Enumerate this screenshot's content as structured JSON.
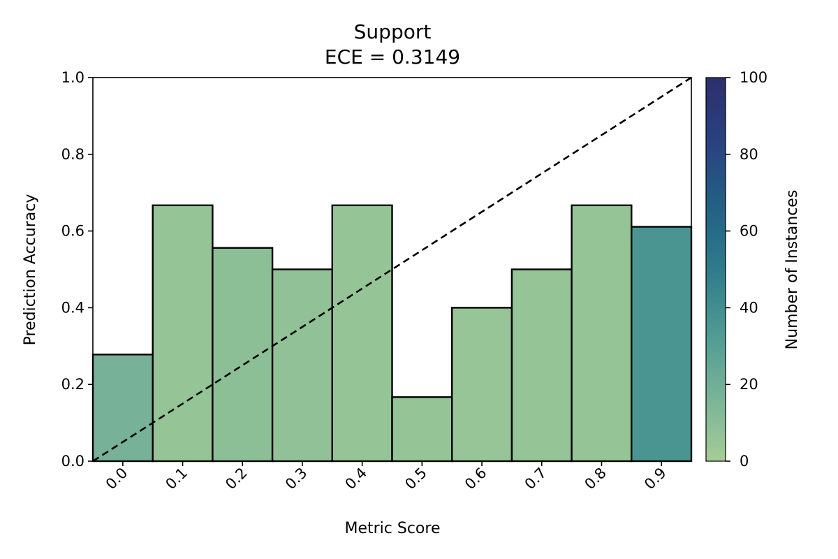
{
  "chart_data": {
    "type": "bar",
    "title": "Support",
    "subtitle": "ECE = 0.3149",
    "xlabel": "Metric Score",
    "ylabel": "Prediction Accuracy",
    "categories": [
      "0.0",
      "0.1",
      "0.2",
      "0.3",
      "0.4",
      "0.5",
      "0.6",
      "0.7",
      "0.8",
      "0.9"
    ],
    "values": [
      0.278,
      0.667,
      0.556,
      0.5,
      0.667,
      0.167,
      0.4,
      0.5,
      0.667,
      0.611
    ],
    "counts": [
      18,
      6,
      9,
      8,
      6,
      6,
      5,
      6,
      6,
      36
    ],
    "ylim": [
      0,
      1.0
    ],
    "yticks": [
      "0.0",
      "0.2",
      "0.4",
      "0.6",
      "0.8",
      "1.0"
    ],
    "reference_line": "diagonal y = x (dashed)",
    "colorbar": {
      "label": "Number of Instances",
      "range": [
        0,
        100
      ],
      "ticks": [
        "0",
        "20",
        "40",
        "60",
        "80",
        "100"
      ],
      "colors": [
        "#a5cd96",
        "#79b398",
        "#4f9a93",
        "#2e7b8b",
        "#236084",
        "#2a4180",
        "#2c2f6b"
      ]
    },
    "grid": false,
    "bar_edge_color": "#000000"
  }
}
